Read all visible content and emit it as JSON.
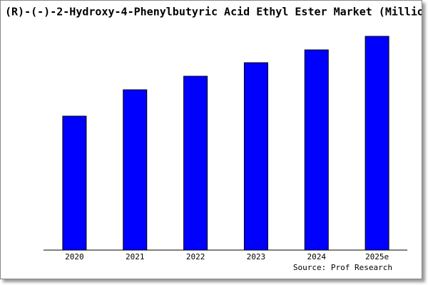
{
  "chart_data": {
    "type": "bar",
    "title": "(R)-(-)-2-Hydroxy-4-Phenylbutyric Acid Ethyl Ester Market (Millio",
    "categories": [
      "2020",
      "2021",
      "2022",
      "2023",
      "2024",
      "2025e"
    ],
    "values": [
      188,
      225,
      244,
      263,
      281,
      300
    ],
    "color": "#0000ff",
    "ylim": [
      0,
      300
    ],
    "source": "Source: Prof Research"
  }
}
